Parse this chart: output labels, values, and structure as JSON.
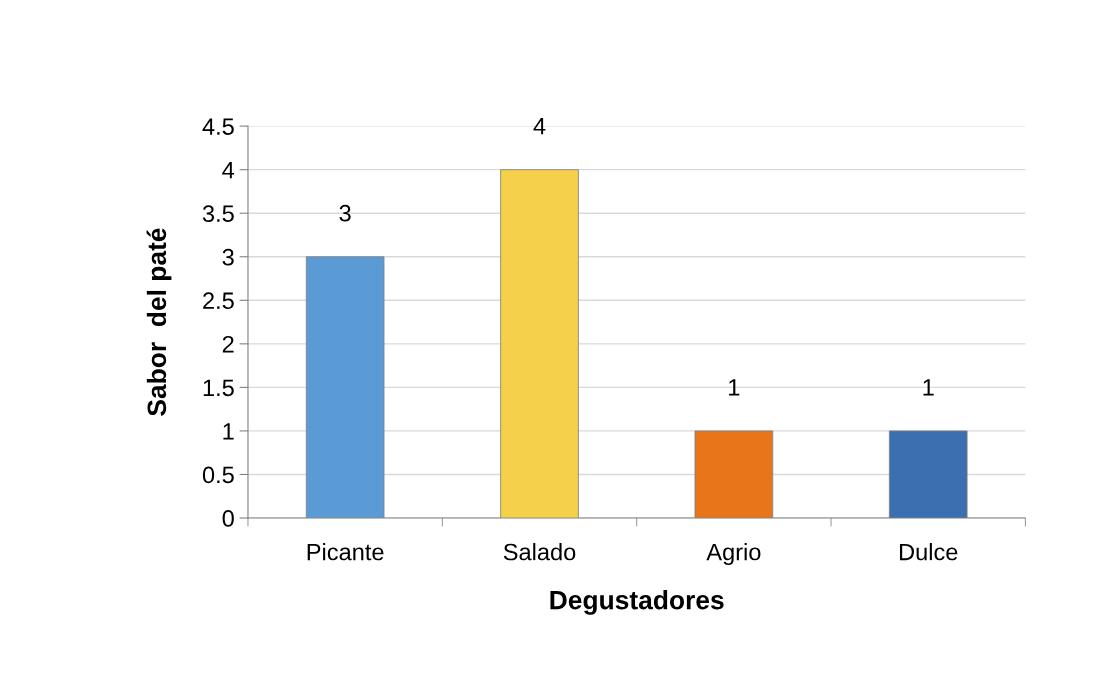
{
  "chart_data": {
    "type": "bar",
    "categories": [
      "Picante",
      "Salado",
      "Agrio",
      "Dulce"
    ],
    "values": [
      3,
      4,
      1,
      1
    ],
    "colors": [
      "#5b9bd5",
      "#f5d04a",
      "#e8751a",
      "#3a6fb0"
    ],
    "xlabel": "Degustadores",
    "ylabel": "Sabor  del paté",
    "ylim": [
      0,
      4.5
    ],
    "yticks": [
      0,
      0.5,
      1,
      1.5,
      2,
      2.5,
      3,
      3.5,
      4,
      4.5
    ],
    "grid": "y",
    "data_labels": true,
    "legend": false
  }
}
